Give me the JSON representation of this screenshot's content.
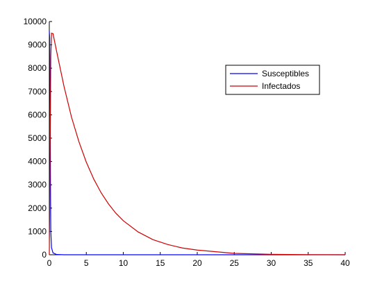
{
  "chart_data": {
    "type": "line",
    "title": "",
    "xlabel": "",
    "ylabel": "",
    "xlim": [
      0,
      40
    ],
    "ylim": [
      0,
      10000
    ],
    "xticks": [
      0,
      5,
      10,
      15,
      20,
      25,
      30,
      35,
      40
    ],
    "yticks": [
      0,
      1000,
      2000,
      3000,
      4000,
      5000,
      6000,
      7000,
      8000,
      9000,
      10000
    ],
    "grid": false,
    "legend_position": "top-right",
    "series": [
      {
        "name": "Susceptibles",
        "color": "#0000ff",
        "x": [
          0,
          0.05,
          0.1,
          0.15,
          0.2,
          0.3,
          0.5,
          1,
          2,
          5,
          10,
          20,
          30,
          40
        ],
        "y": [
          9600,
          9300,
          7000,
          3500,
          1000,
          300,
          80,
          10,
          0,
          0,
          0,
          0,
          0,
          0
        ]
      },
      {
        "name": "Infectados",
        "color": "#cc0000",
        "x": [
          0,
          0.1,
          0.2,
          0.3,
          0.5,
          1,
          2,
          3,
          4,
          5,
          6,
          7,
          8,
          9,
          10,
          12,
          14,
          16,
          18,
          20,
          25,
          30,
          35,
          40
        ],
        "y": [
          0,
          4000,
          8500,
          9500,
          9480,
          8700,
          7200,
          5900,
          4850,
          3970,
          3250,
          2660,
          2180,
          1780,
          1460,
          980,
          650,
          440,
          290,
          200,
          60,
          20,
          5,
          0
        ]
      }
    ]
  }
}
